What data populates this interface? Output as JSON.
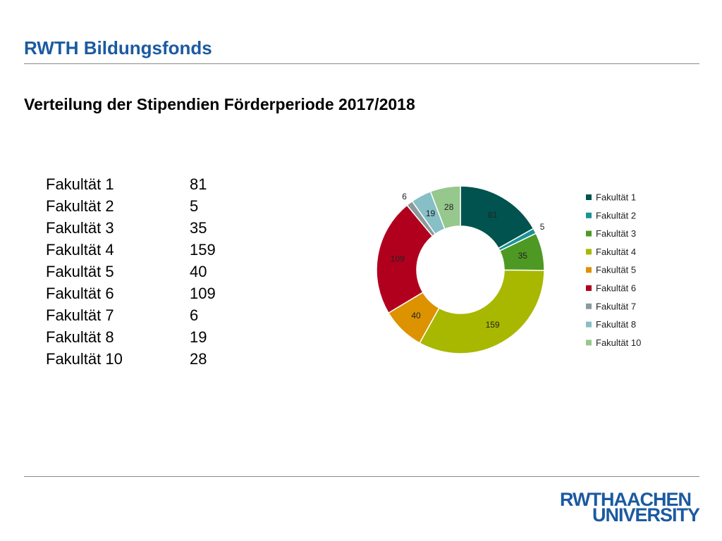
{
  "header": {
    "title": "RWTH Bildungsfonds"
  },
  "slide": {
    "title": "Verteilung der Stipendien Förderperiode 2017/2018"
  },
  "logo": {
    "line1": "RWTHAACHEN",
    "line2": "UNIVERSITY",
    "color": "#1b5aa1"
  },
  "chart_data": {
    "type": "pie",
    "donut": true,
    "title": "",
    "legend_position": "right",
    "categories": [
      "Fakultät 1",
      "Fakultät 2",
      "Fakultät 3",
      "Fakultät 4",
      "Fakultät 5",
      "Fakultät 6",
      "Fakultät 7",
      "Fakultät 8",
      "Fakultät 10"
    ],
    "values": [
      81,
      5,
      35,
      159,
      40,
      109,
      6,
      19,
      28
    ],
    "colors": [
      "#00534f",
      "#1a9396",
      "#4d9924",
      "#a8b800",
      "#dd9200",
      "#b1001d",
      "#8a9a9a",
      "#87bfc7",
      "#96c78c"
    ]
  }
}
